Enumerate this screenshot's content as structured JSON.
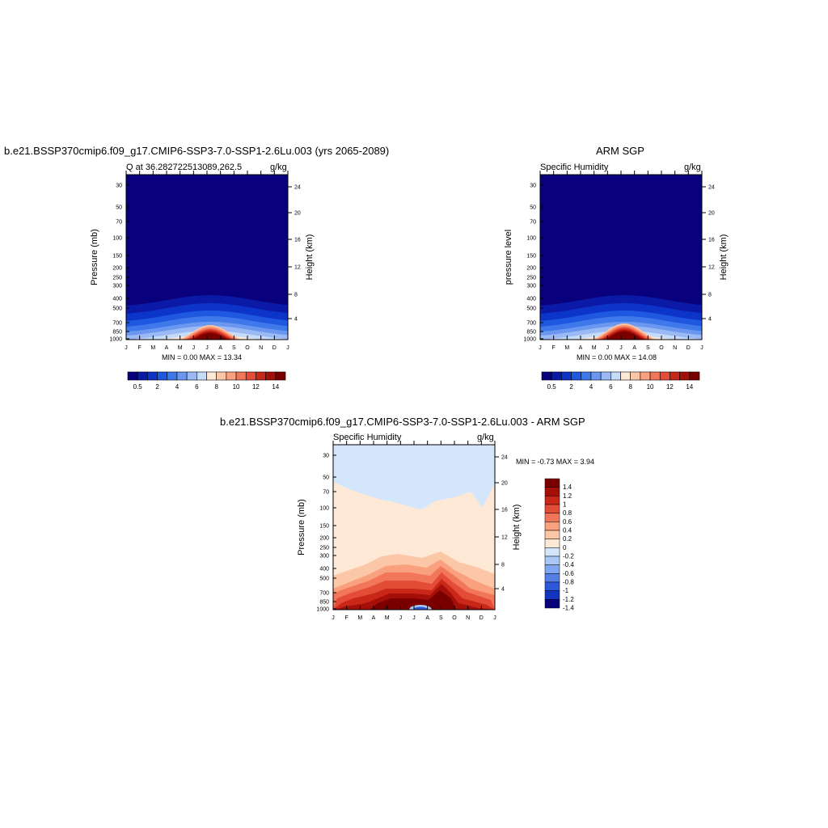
{
  "chart_data": [
    {
      "type": "heatmap",
      "title": "b.e21.BSSP370cmip6.f09_g17.CMIP6-SSP3-7.0-SSP1-2.6Lu.003 (yrs 2065-2089)",
      "left_subtitle": "Q at 36.282722513089,262.5",
      "right_subtitle": "g/kg",
      "ylabel": "Pressure (mb)",
      "y2label": "Height (km)",
      "x_ticks": [
        "J",
        "F",
        "M",
        "A",
        "M",
        "J",
        "J",
        "A",
        "S",
        "O",
        "N",
        "D",
        "J"
      ],
      "y_ticks": [
        "30",
        "50",
        "70",
        "100",
        "150",
        "200",
        "250",
        "300",
        "400",
        "500",
        "700",
        "850",
        "1000"
      ],
      "y2_ticks": [
        "24",
        "20",
        "16",
        "12",
        "8",
        "4"
      ],
      "stats": "MIN =   0.00 MAX =  13.34",
      "colorbar_labels": [
        "0.5",
        "2",
        "4",
        "6",
        "8",
        "10",
        "12",
        "14"
      ],
      "min": 0.0,
      "max": 13.34
    },
    {
      "type": "heatmap",
      "title": "ARM SGP",
      "left_subtitle": "Specific Humidity",
      "right_subtitle": "g/kg",
      "ylabel": "pressure level",
      "y2label": "Height (km)",
      "x_ticks": [
        "J",
        "F",
        "M",
        "A",
        "M",
        "J",
        "J",
        "A",
        "S",
        "O",
        "N",
        "D",
        "J"
      ],
      "y_ticks": [
        "30",
        "50",
        "70",
        "100",
        "150",
        "200",
        "250",
        "300",
        "400",
        "500",
        "700",
        "850",
        "1000"
      ],
      "y2_ticks": [
        "24",
        "20",
        "16",
        "12",
        "8",
        "4"
      ],
      "stats": "MIN =   0.00 MAX =  14.08",
      "colorbar_labels": [
        "0.5",
        "2",
        "4",
        "6",
        "8",
        "10",
        "12",
        "14"
      ],
      "min": 0.0,
      "max": 14.08
    },
    {
      "type": "heatmap",
      "title": "b.e21.BSSP370cmip6.f09_g17.CMIP6-SSP3-7.0-SSP1-2.6Lu.003 - ARM SGP",
      "left_subtitle": "Specific Humidity",
      "right_subtitle": "g/kg",
      "ylabel": "Pressure (mb)",
      "y2label": "Height (km)",
      "x_ticks": [
        "J",
        "F",
        "M",
        "A",
        "M",
        "J",
        "J",
        "A",
        "S",
        "O",
        "N",
        "D",
        "J"
      ],
      "y_ticks": [
        "30",
        "50",
        "70",
        "100",
        "150",
        "200",
        "250",
        "300",
        "400",
        "500",
        "700",
        "850",
        "1000"
      ],
      "y2_ticks": [
        "24",
        "20",
        "16",
        "12",
        "8",
        "4"
      ],
      "stats": "MIN =  -0.73 MAX =   3.94",
      "colorbar_labels": [
        "1.4",
        "1.2",
        "1",
        "0.8",
        "0.6",
        "0.4",
        "0.2",
        "0",
        "-0.2",
        "-0.4",
        "-0.6",
        "-0.8",
        "-1",
        "-1.2",
        "-1.4"
      ],
      "min": -0.73,
      "max": 3.94
    }
  ],
  "colors": {
    "abs_scale": [
      "#08007c",
      "#0b1aa6",
      "#0c34c8",
      "#1e58e0",
      "#3e78ea",
      "#6b97f0",
      "#9ab9f5",
      "#c6dbfa",
      "#fde9d6",
      "#fcc7a7",
      "#f9a07f",
      "#f2765a",
      "#e34c36",
      "#c92818",
      "#a50f0a",
      "#7a0000"
    ],
    "diff_scale": [
      "#7a0000",
      "#a50f0a",
      "#c92818",
      "#e34c36",
      "#f2765a",
      "#f9a07f",
      "#fcc7a7",
      "#fde9d6",
      "#d4e6fb",
      "#a9c8f5",
      "#7fa6ee",
      "#567fe6",
      "#2d58da",
      "#1235c0",
      "#08007c"
    ]
  }
}
